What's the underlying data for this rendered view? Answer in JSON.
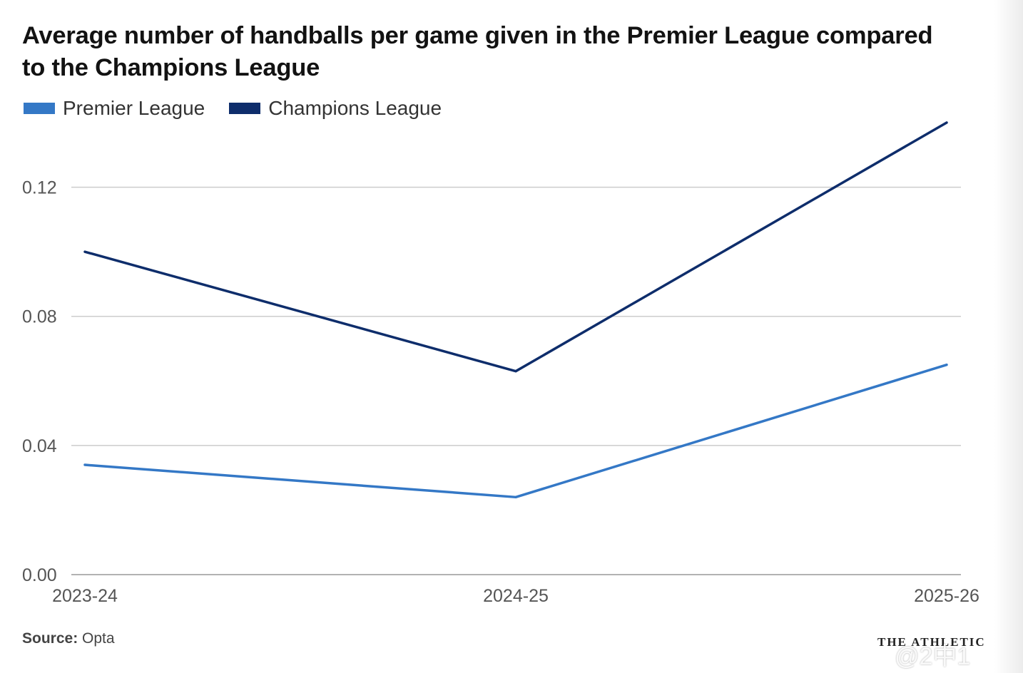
{
  "colors": {
    "premier_league": "#3478c6",
    "champions_league": "#0e2d6b",
    "grid": "#cccccc",
    "axis_text": "#555555"
  },
  "footer": {
    "source_label": "Source:",
    "source_value": "Opta",
    "logo_text": "THE ATHLETIC",
    "watermark": "@2中1"
  },
  "chart_data": {
    "type": "line",
    "title": "Average number of handballs per game given in the Premier League compared to the Champions League",
    "xlabel": "",
    "ylabel": "",
    "categories": [
      "2023-24",
      "2024-25",
      "2025-26"
    ],
    "series": [
      {
        "name": "Premier League",
        "values": [
          0.034,
          0.024,
          0.065
        ]
      },
      {
        "name": "Champions League",
        "values": [
          0.1,
          0.063,
          0.14
        ]
      }
    ],
    "ylim": [
      0,
      0.14
    ],
    "yticks": [
      0.0,
      0.04,
      0.08,
      0.12
    ],
    "ytick_labels": [
      "0.00",
      "0.04",
      "0.08",
      "0.12"
    ],
    "grid": true,
    "legend_position": "top-left"
  }
}
